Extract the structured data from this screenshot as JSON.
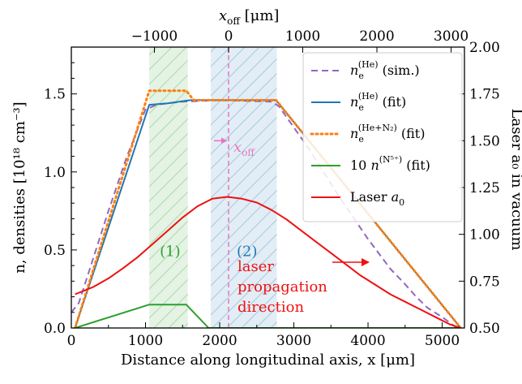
{
  "chart_data": {
    "type": "line",
    "title": "",
    "xlabel": "Distance along longitudinal axis, x [μm]",
    "ylabel": "n, densities [10¹⁸ cm⁻³]",
    "ylabel_right": "Laser a₀ in vacuum",
    "xlabel_top": "x_off [μm]",
    "xlim": [
      0,
      5300
    ],
    "ylim": [
      0,
      1.8
    ],
    "ylim_right": [
      0.5,
      2.0
    ],
    "x_ticks": [
      "0",
      "1000",
      "2000",
      "3000",
      "4000",
      "5000"
    ],
    "y_ticks": [
      "0.0",
      "0.5",
      "1.0",
      "1.5"
    ],
    "y_right_ticks": [
      "0.50",
      "0.75",
      "1.00",
      "1.25",
      "1.50",
      "1.75",
      "2.00"
    ],
    "x_top_ticks": [
      "−1000",
      "0",
      "1000",
      "2000",
      "3000"
    ],
    "x_offset_zero": 2120,
    "grid": false,
    "legend_position": "top-right",
    "series": [
      {
        "name": "n_e^(He) (sim.)",
        "color": "#9467bd",
        "dash": "dashed",
        "axis": "left",
        "x": [
          0,
          100,
          250,
          500,
          750,
          1000,
          1150,
          1300,
          1500,
          2000,
          2700,
          2800,
          3200,
          3600,
          4000,
          4300,
          4500,
          4650,
          4800,
          5000,
          5200
        ],
        "y": [
          0.1,
          0.16,
          0.38,
          0.75,
          1.1,
          1.4,
          1.43,
          1.44,
          1.45,
          1.46,
          1.45,
          1.42,
          1.15,
          0.85,
          0.57,
          0.38,
          0.28,
          0.2,
          0.13,
          0.07,
          0.0
        ]
      },
      {
        "name": "n_e^(He) (fit)",
        "color": "#1f77b4",
        "dash": "solid",
        "axis": "left",
        "x": [
          50,
          1050,
          1300,
          1600,
          2760,
          5250
        ],
        "y": [
          0.0,
          1.43,
          1.44,
          1.46,
          1.46,
          0.0
        ]
      },
      {
        "name": "n_e^(He+N₂) (fit)",
        "color": "#ff7f0e",
        "dash": "dotted",
        "axis": "left",
        "x": [
          50,
          1050,
          1550,
          1650,
          2760,
          5250
        ],
        "y": [
          0.0,
          1.52,
          1.52,
          1.46,
          1.46,
          0.0
        ]
      },
      {
        "name": "10 n^(N⁵⁺) (fit)",
        "color": "#2ca02c",
        "dash": "solid",
        "axis": "left",
        "x": [
          50,
          1050,
          1550,
          1850,
          5250
        ],
        "y": [
          0.0,
          0.15,
          0.15,
          0.0,
          0.0
        ]
      },
      {
        "name": "Laser a₀",
        "color": "#ee1111",
        "dash": "solid",
        "axis": "right",
        "x": [
          50,
          300,
          500,
          700,
          900,
          1100,
          1300,
          1500,
          1700,
          1900,
          2100,
          2300,
          2500,
          2700,
          2900,
          3100,
          3300,
          3500,
          3700,
          3900,
          4100,
          4300,
          4500,
          4700,
          4900,
          5100,
          5250
        ],
        "y": [
          0.68,
          0.72,
          0.765,
          0.82,
          0.88,
          0.95,
          1.02,
          1.09,
          1.15,
          1.19,
          1.2,
          1.19,
          1.17,
          1.13,
          1.08,
          1.02,
          0.96,
          0.9,
          0.84,
          0.78,
          0.73,
          0.68,
          0.64,
          0.6,
          0.56,
          0.52,
          0.5
        ]
      }
    ],
    "shaded_regions": [
      {
        "label": "(1)",
        "x": [
          1050,
          1570
        ],
        "color": "#2ca02c"
      },
      {
        "label": "(2)",
        "x": [
          1880,
          2770
        ],
        "color": "#1f77b4"
      }
    ],
    "vline": {
      "x": 2120,
      "label": "x_off",
      "color": "#e377c2"
    },
    "annotations": [
      {
        "text": [
          "laser",
          "propagation",
          "direction"
        ],
        "color": "#ee1111"
      }
    ]
  }
}
